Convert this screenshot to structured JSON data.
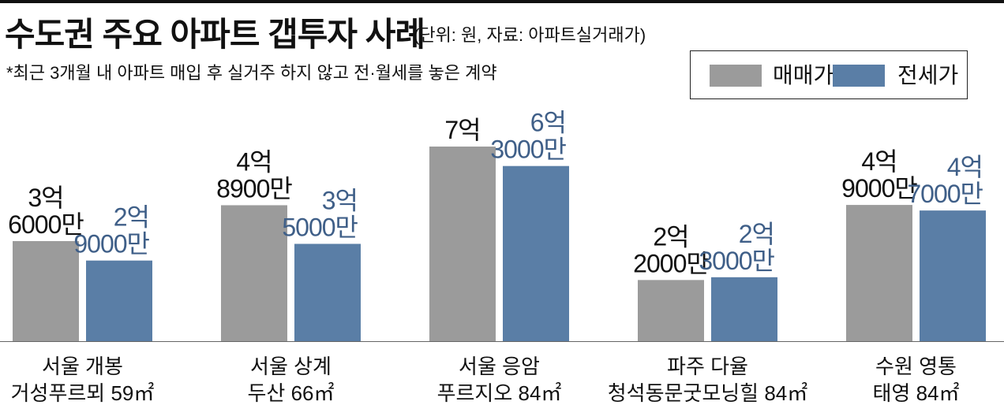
{
  "title": "수도권 주요 아파트 갭투자 사례",
  "unit_note": "(단위: 원, 자료: 아파트실거래가)",
  "footnote": "*최근 3개월 내 아파트 매입 후 실거주 하지 않고 전·월세를 놓은 계약",
  "legend": [
    {
      "label": "매매가",
      "color": "#9b9b9b"
    },
    {
      "label": "전세가",
      "color": "#5a7ea6"
    }
  ],
  "chart_data": {
    "type": "bar",
    "categories": [
      [
        "서울 개봉",
        "거성푸르뫼 59㎡"
      ],
      [
        "서울 상계",
        "두산 66㎡"
      ],
      [
        "서울 응암",
        "푸르지오 84㎡"
      ],
      [
        "파주 다율",
        "청석동문굿모닝힐 84㎡"
      ],
      [
        "수원 영통",
        "태영 84㎡"
      ]
    ],
    "unit": "억원",
    "series": [
      {
        "name": "매매가",
        "color": "#9b9b9b",
        "values": [
          3.6,
          4.89,
          7.0,
          2.2,
          4.9
        ],
        "labels": [
          [
            "3억",
            "6000만"
          ],
          [
            "4억",
            "8900만"
          ],
          [
            "7억"
          ],
          [
            "2억",
            "2000만"
          ],
          [
            "4억",
            "9000만"
          ]
        ]
      },
      {
        "name": "전세가",
        "color": "#5a7ea6",
        "values": [
          2.9,
          3.5,
          6.3,
          2.3,
          4.7
        ],
        "labels": [
          [
            "2억",
            "9000만"
          ],
          [
            "3억",
            "5000만"
          ],
          [
            "6억",
            "3000만"
          ],
          [
            "2억",
            "3000만"
          ],
          [
            "4억",
            "7000만"
          ]
        ]
      }
    ],
    "ylim": [
      0,
      7.0
    ]
  }
}
